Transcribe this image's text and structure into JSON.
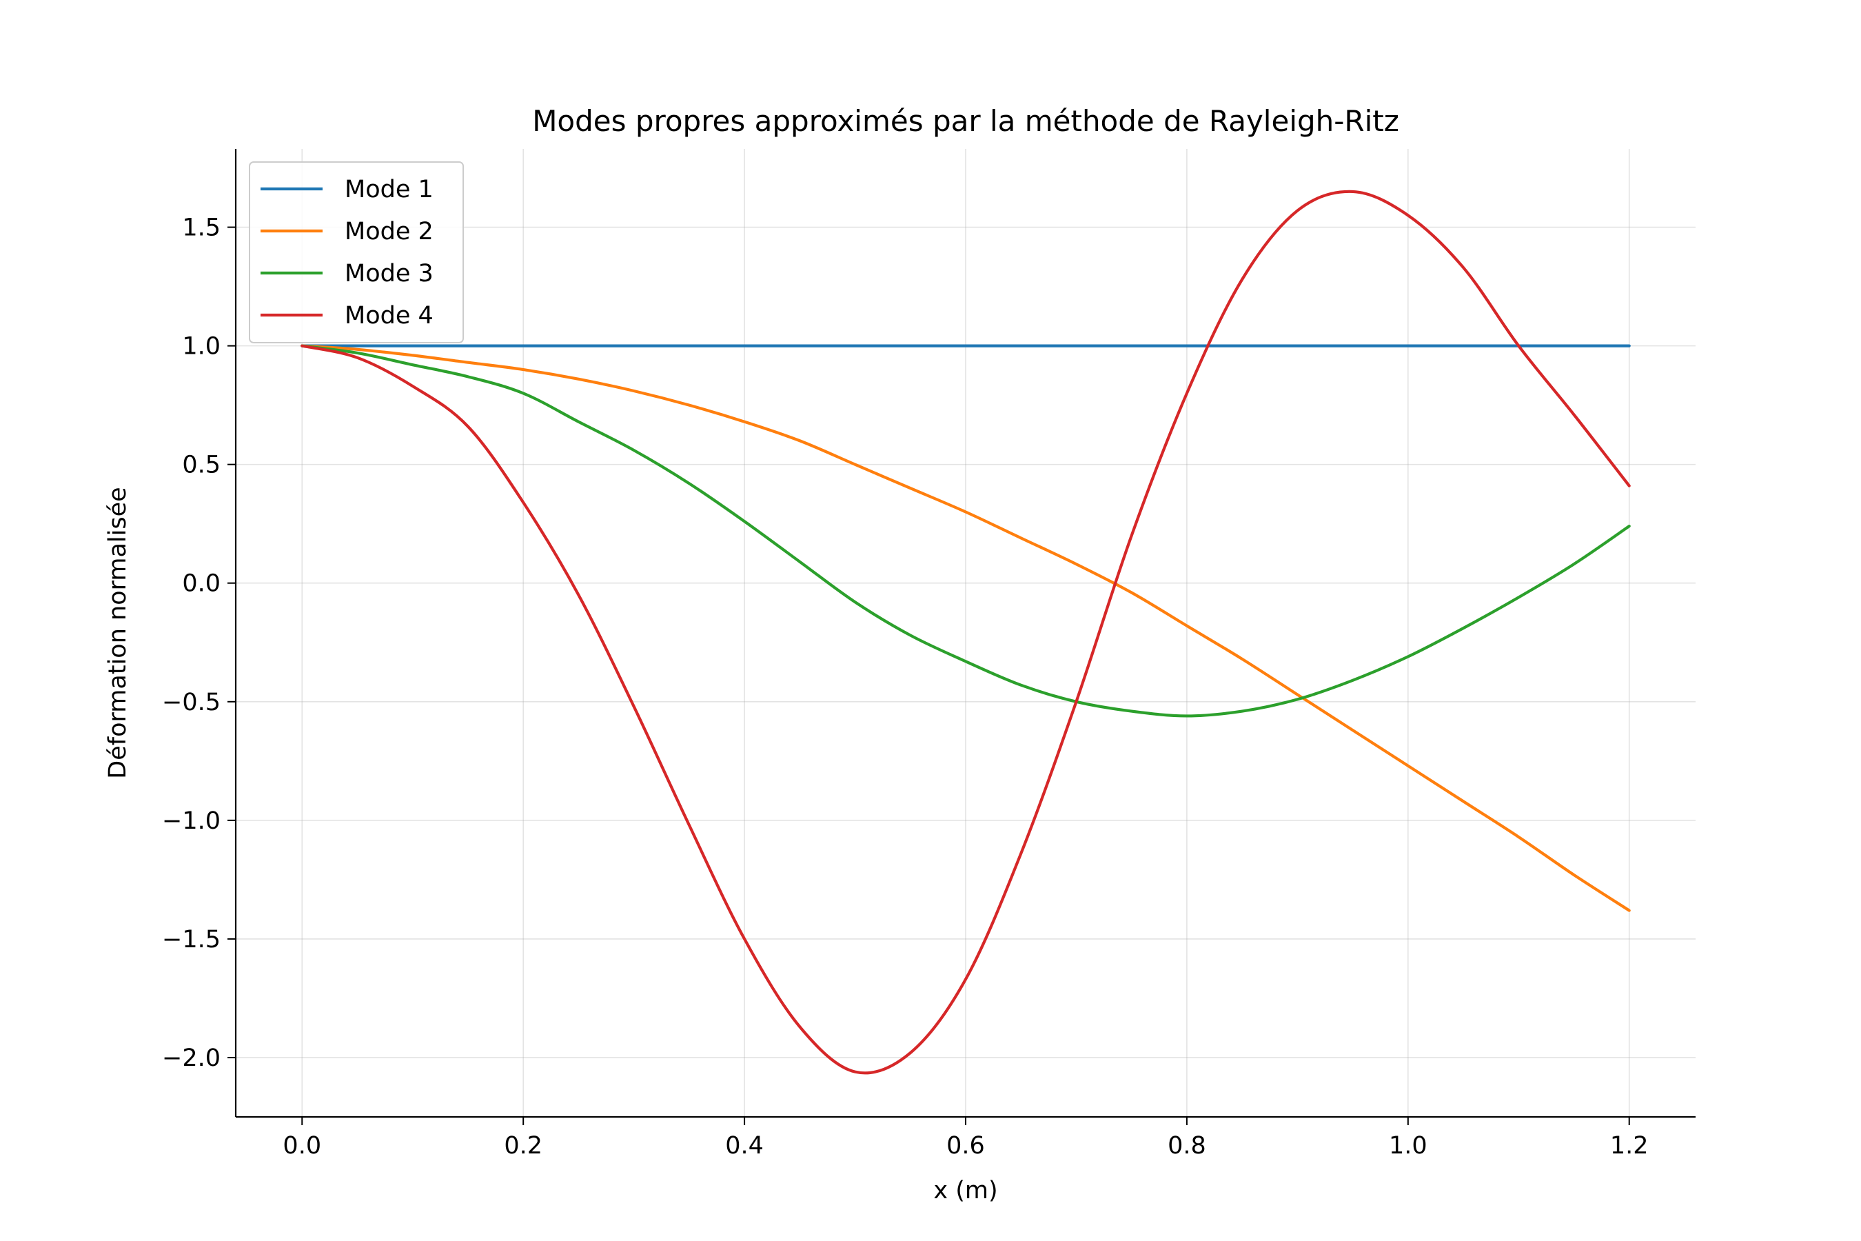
{
  "chart_data": {
    "type": "line",
    "title": "Modes propres approximés par la méthode de Rayleigh-Ritz",
    "xlabel": "x (m)",
    "ylabel": "Déformation normalisée",
    "xlim": [
      -0.06,
      1.26
    ],
    "ylim": [
      -2.25,
      1.83
    ],
    "x_ticks": [
      0.0,
      0.2,
      0.4,
      0.6,
      0.8,
      1.0,
      1.2
    ],
    "x_tick_labels": [
      "0.0",
      "0.2",
      "0.4",
      "0.6",
      "0.8",
      "1.0",
      "1.2"
    ],
    "y_ticks": [
      -2.0,
      -1.5,
      -1.0,
      -0.5,
      0.0,
      0.5,
      1.0,
      1.5
    ],
    "y_tick_labels": [
      "−2.0",
      "−1.5",
      "−1.0",
      "−0.5",
      "0.0",
      "0.5",
      "1.0",
      "1.5"
    ],
    "grid": true,
    "legend_position": "upper-left",
    "x": [
      0.0,
      0.05,
      0.1,
      0.15,
      0.2,
      0.25,
      0.3,
      0.35,
      0.4,
      0.45,
      0.5,
      0.55,
      0.6,
      0.65,
      0.7,
      0.75,
      0.8,
      0.85,
      0.9,
      0.95,
      1.0,
      1.05,
      1.1,
      1.15,
      1.2
    ],
    "series": [
      {
        "name": "Mode 1",
        "color": "#1f77b4",
        "values": [
          1.0,
          1.0,
          1.0,
          1.0,
          1.0,
          1.0,
          1.0,
          1.0,
          1.0,
          1.0,
          1.0,
          1.0,
          1.0,
          1.0,
          1.0,
          1.0,
          1.0,
          1.0,
          1.0,
          1.0,
          1.0,
          1.0,
          1.0,
          1.0,
          1.0
        ]
      },
      {
        "name": "Mode 2",
        "color": "#ff7f0e",
        "values": [
          1.0,
          0.985,
          0.96,
          0.93,
          0.9,
          0.86,
          0.81,
          0.75,
          0.68,
          0.6,
          0.5,
          0.4,
          0.3,
          0.19,
          0.08,
          -0.04,
          -0.18,
          -0.32,
          -0.47,
          -0.62,
          -0.77,
          -0.92,
          -1.07,
          -1.23,
          -1.38
        ]
      },
      {
        "name": "Mode 3",
        "color": "#2ca02c",
        "values": [
          1.0,
          0.97,
          0.92,
          0.87,
          0.8,
          0.68,
          0.56,
          0.42,
          0.26,
          0.09,
          -0.08,
          -0.22,
          -0.33,
          -0.43,
          -0.5,
          -0.54,
          -0.56,
          -0.54,
          -0.49,
          -0.41,
          -0.31,
          -0.19,
          -0.06,
          0.08,
          0.24
        ]
      },
      {
        "name": "Mode 4",
        "color": "#d62728",
        "values": [
          1.0,
          0.95,
          0.83,
          0.66,
          0.34,
          -0.05,
          -0.52,
          -1.02,
          -1.5,
          -1.87,
          -2.06,
          -1.98,
          -1.67,
          -1.14,
          -0.5,
          0.2,
          0.8,
          1.28,
          1.57,
          1.65,
          1.55,
          1.33,
          1.0,
          0.71,
          0.41
        ]
      }
    ]
  }
}
